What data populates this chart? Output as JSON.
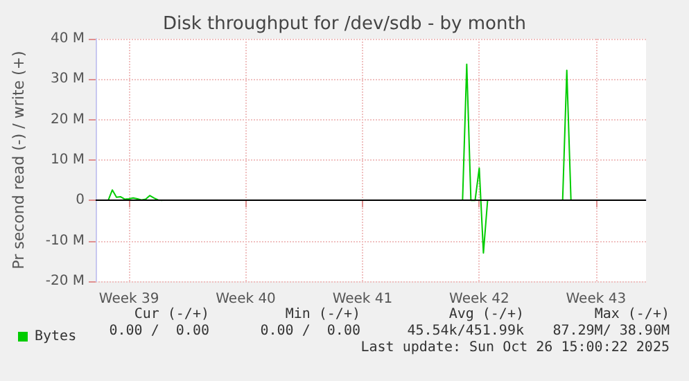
{
  "chart_data": {
    "type": "line",
    "title": "Disk throughput for /dev/sdb - by month",
    "ylabel": "Pr second read (-) / write (+)",
    "categories": [
      null,
      null,
      null,
      null,
      null,
      null,
      null,
      null,
      "Week 39",
      null,
      null,
      null,
      null,
      null,
      null,
      null,
      null,
      null,
      null,
      null,
      null,
      null,
      null,
      null,
      null,
      null,
      null,
      null,
      null,
      null,
      null,
      null,
      null,
      null,
      null,
      null,
      "Week 40",
      null,
      null,
      null,
      null,
      null,
      null,
      null,
      null,
      null,
      null,
      null,
      null,
      null,
      null,
      null,
      null,
      null,
      null,
      null,
      null,
      null,
      null,
      null,
      null,
      null,
      null,
      null,
      "Week 41",
      null,
      null,
      null,
      null,
      null,
      null,
      null,
      null,
      null,
      null,
      null,
      null,
      null,
      null,
      null,
      null,
      null,
      null,
      null,
      null,
      null,
      null,
      null,
      null,
      null,
      null,
      null,
      "Week 42",
      null,
      null,
      null,
      null,
      null,
      null,
      null,
      null,
      null,
      null,
      null,
      null,
      null,
      null,
      null,
      null,
      null,
      null,
      null,
      null,
      null,
      null,
      null,
      null,
      null,
      null,
      null,
      "Week 43",
      null,
      null,
      null,
      null,
      null,
      null,
      null,
      null,
      null,
      null,
      null,
      null
    ],
    "series": [
      {
        "name": "Bytes",
        "color": "#00cc00",
        "values": [
          null,
          null,
          null,
          0,
          2.6,
          0.8,
          0.9,
          0.3,
          0.4,
          0.6,
          0.4,
          0.1,
          0.3,
          1.2,
          0.6,
          0.1,
          0,
          null,
          null,
          null,
          null,
          null,
          null,
          null,
          null,
          null,
          null,
          null,
          null,
          null,
          null,
          null,
          null,
          null,
          null,
          null,
          null,
          null,
          null,
          null,
          null,
          null,
          null,
          null,
          null,
          null,
          null,
          null,
          null,
          null,
          null,
          null,
          null,
          null,
          null,
          null,
          null,
          null,
          null,
          null,
          null,
          null,
          null,
          null,
          null,
          null,
          null,
          null,
          null,
          null,
          null,
          null,
          null,
          null,
          null,
          null,
          null,
          null,
          null,
          null,
          null,
          null,
          null,
          null,
          null,
          null,
          null,
          null,
          0,
          33.7,
          0,
          0,
          8,
          -13,
          0,
          null,
          null,
          null,
          null,
          null,
          null,
          null,
          null,
          null,
          null,
          null,
          null,
          null,
          null,
          null,
          null,
          null,
          0,
          32.2,
          0,
          null,
          null,
          null,
          null,
          null,
          null,
          null,
          null,
          null,
          null,
          null,
          null,
          null,
          null,
          null,
          null,
          null,
          null
        ]
      }
    ],
    "ylim": [
      -20,
      40
    ],
    "yticks": [
      {
        "value": -20,
        "label": "-20 M"
      },
      {
        "value": -10,
        "label": "-10 M"
      },
      0,
      {
        "value": 10,
        "label": "10 M"
      },
      {
        "value": 20,
        "label": "20 M"
      },
      {
        "value": 30,
        "label": "30 M"
      },
      {
        "value": 40,
        "label": "40 M"
      }
    ],
    "ref_lines": [
      {
        "axis": "y",
        "value": 0,
        "color": "#000000"
      }
    ],
    "grid": true,
    "legend": "bottom left",
    "marker": "none",
    "line_style": "solid",
    "annotations": [
      "Cur (-/+)",
      "Min (-/+)",
      "Avg (-/+)",
      "Max (-/+)",
      "0.00 /  0.00",
      "0.00 /  0.00",
      "45.54k/451.99k",
      "87.29M/ 38.90M",
      "Last update: Sun Oct 26 15:00:22 2025"
    ]
  }
}
